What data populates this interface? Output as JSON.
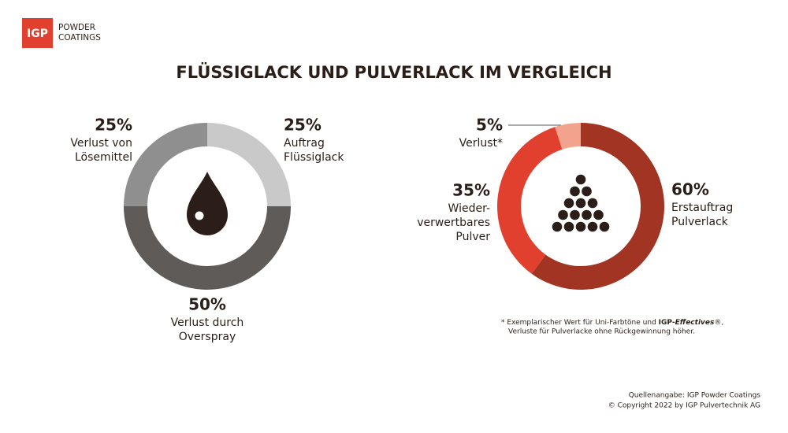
{
  "logo": {
    "mark": "IGP",
    "text": [
      "POWDER",
      "COATINGS"
    ]
  },
  "title": "FLÜSSIGLACK UND PULVERLACK IM VERGLEICH",
  "chart_data": [
    {
      "type": "pie",
      "categories": [
        [
          "Auftrag",
          "Flüssiglack"
        ],
        [
          "Verlust durch",
          "Overspray"
        ],
        [
          "Verlust von",
          "Lösemittel"
        ]
      ],
      "values": [
        25,
        50,
        25
      ],
      "value_labels": [
        "25%",
        "50%",
        "25%"
      ],
      "colors": [
        "#c9c9c9",
        "#5f5b58",
        "#8f8f8f"
      ]
    },
    {
      "type": "pie",
      "categories": [
        [
          "Erstauftrag",
          "Pulverlack"
        ],
        [
          "Wieder-",
          "verwertbares",
          "Pulver"
        ],
        [
          "Verlust*"
        ]
      ],
      "values": [
        60,
        35,
        5
      ],
      "value_labels": [
        "60%",
        "35%",
        "5%"
      ],
      "colors": [
        "#a13423",
        "#e1402f",
        "#f2a38d"
      ]
    }
  ],
  "footnote": {
    "lines": [
      [
        "* Exemplarischer Wert für Uni-Farbtöne und ",
        "IGP-",
        "Effectives",
        "®,"
      ],
      [
        "Verluste für Pulverlacke ohne Rückgewinnung höher."
      ]
    ]
  },
  "source": [
    "Quellenangabe: IGP Powder Coatings",
    "© Copyright 2022 by IGP Pulvertechnik AG"
  ]
}
